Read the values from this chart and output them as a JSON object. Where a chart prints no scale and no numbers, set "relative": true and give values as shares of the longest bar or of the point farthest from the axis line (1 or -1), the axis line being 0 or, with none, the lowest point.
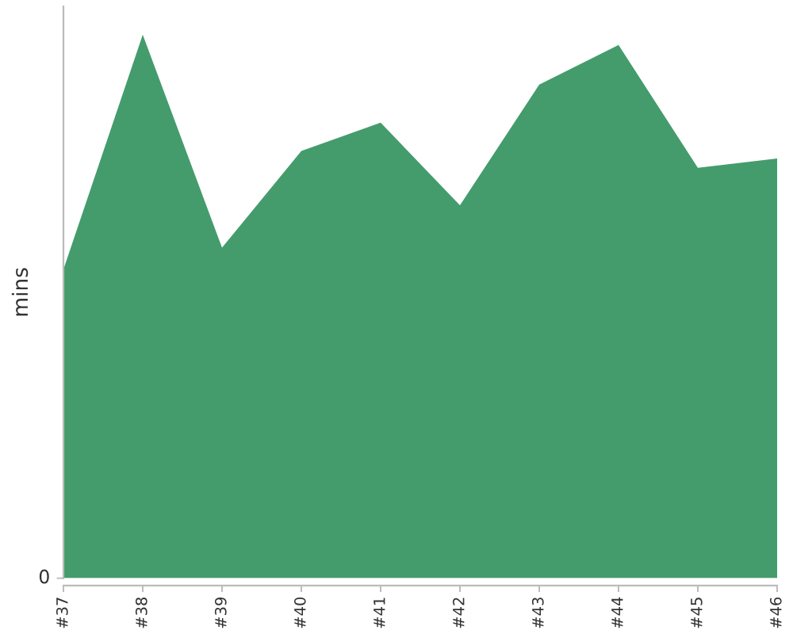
{
  "chart_data": {
    "type": "area",
    "ylabel": "mins",
    "relative": true,
    "tick_labels": "x",
    "annotations": [
      "0"
    ],
    "categories": [
      "#37",
      "#38",
      "#39",
      "#40",
      "#41",
      "#42",
      "#43",
      "#44",
      "#45",
      "#46"
    ],
    "series": [
      {
        "color": "#449c6c",
        "values": [
          0.568,
          1,
          0.608,
          0.786,
          0.838,
          0.686,
          0.908,
          0.981,
          0.755,
          0.772
        ]
      }
    ]
  }
}
